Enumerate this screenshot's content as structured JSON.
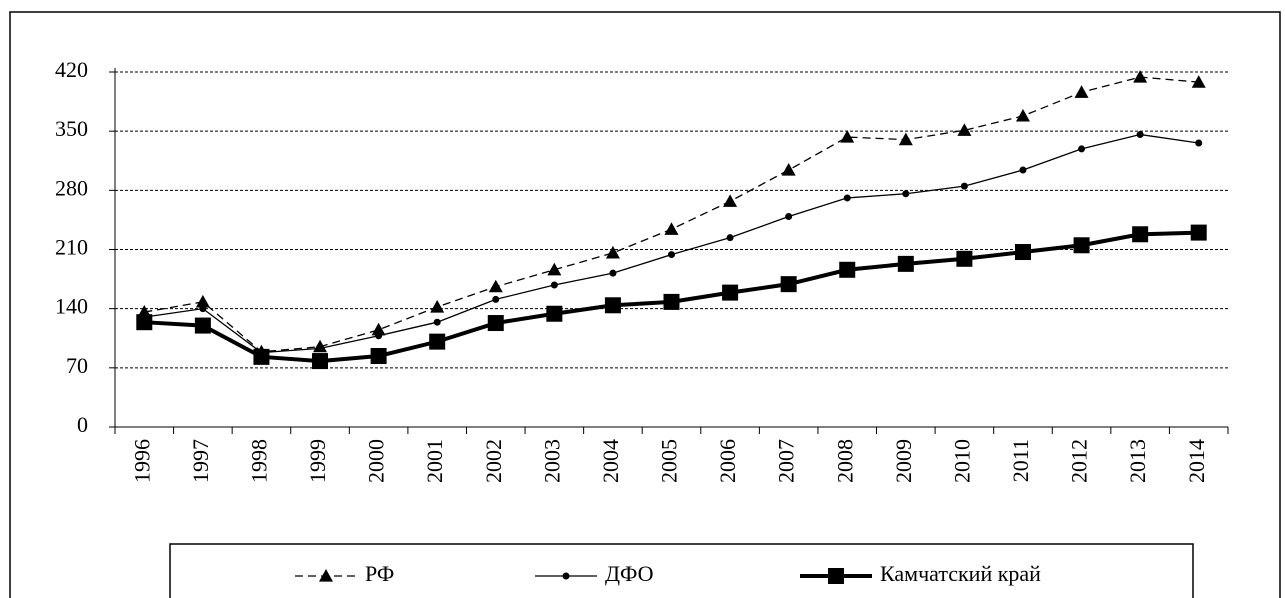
{
  "chart_data": {
    "type": "line",
    "categories": [
      "1996",
      "1997",
      "1998",
      "1999",
      "2000",
      "2001",
      "2002",
      "2003",
      "2004",
      "2005",
      "2006",
      "2007",
      "2008",
      "2009",
      "2010",
      "2011",
      "2012",
      "2013",
      "2014"
    ],
    "series": [
      {
        "name": "РФ",
        "color": "#000000",
        "values": [
          136,
          148,
          89,
          95,
          115,
          142,
          166,
          186,
          206,
          234,
          267,
          304,
          343,
          340,
          351,
          368,
          396,
          414,
          408
        ]
      },
      {
        "name": "ДФО",
        "color": "#000000",
        "values": [
          130,
          140,
          88,
          93,
          108,
          124,
          151,
          168,
          182,
          204,
          224,
          249,
          271,
          276,
          285,
          304,
          329,
          346,
          336
        ]
      },
      {
        "name": "Камчатский край",
        "color": "#000000",
        "values": [
          124,
          120,
          83,
          78,
          84,
          101,
          123,
          134,
          144,
          148,
          159,
          169,
          186,
          193,
          199,
          207,
          215,
          228,
          230
        ]
      }
    ],
    "ylim": [
      0,
      420
    ],
    "yticks": [
      0,
      70,
      140,
      210,
      280,
      350,
      420
    ],
    "grid": true
  }
}
